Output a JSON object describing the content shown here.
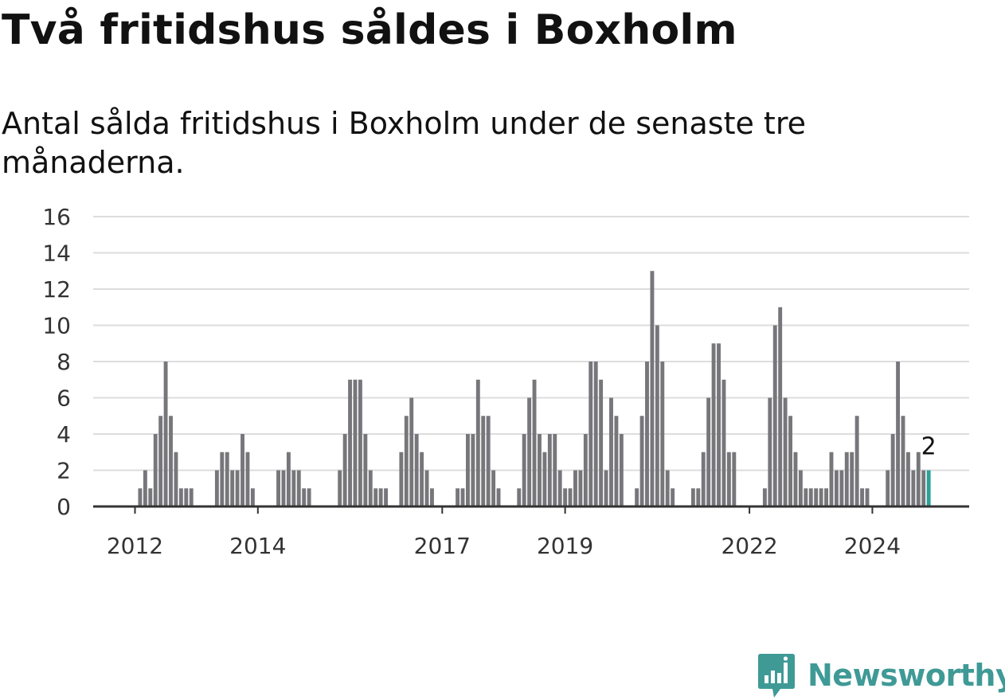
{
  "title": "Två fritidshus såldes i Boxholm",
  "subtitle": "Antal sålda fritidshus i Boxholm under de senaste tre månaderna.",
  "brand": {
    "name": "Newsworthy",
    "icon": "newsworthy-logo-icon",
    "color": "#3f9a96"
  },
  "colors": {
    "bar": "#77767b",
    "highlight": "#2aa198",
    "grid": "#dddddd",
    "axis": "#333333"
  },
  "chart_data": {
    "type": "bar",
    "ylim": [
      0,
      16
    ],
    "yticks": [
      "0",
      "2",
      "4",
      "6",
      "8",
      "10",
      "12",
      "14",
      "16"
    ],
    "xticks": [
      {
        "label": "2012",
        "index": 0
      },
      {
        "label": "2014",
        "index": 24
      },
      {
        "label": "2017",
        "index": 60
      },
      {
        "label": "2019",
        "index": 84
      },
      {
        "label": "2022",
        "index": 120
      },
      {
        "label": "2024",
        "index": 144
      }
    ],
    "grid": true,
    "highlight_label": "2",
    "values": [
      0,
      1,
      2,
      1,
      4,
      5,
      8,
      5,
      3,
      1,
      1,
      1,
      0,
      0,
      0,
      0,
      2,
      3,
      3,
      2,
      2,
      4,
      3,
      1,
      0,
      0,
      0,
      0,
      2,
      2,
      3,
      2,
      2,
      1,
      1,
      0,
      0,
      0,
      0,
      0,
      2,
      4,
      7,
      7,
      7,
      4,
      2,
      1,
      1,
      1,
      0,
      0,
      3,
      5,
      6,
      4,
      3,
      2,
      1,
      0,
      0,
      0,
      0,
      1,
      1,
      4,
      4,
      7,
      5,
      5,
      2,
      1,
      0,
      0,
      0,
      1,
      4,
      6,
      7,
      4,
      3,
      4,
      4,
      2,
      1,
      1,
      2,
      2,
      4,
      8,
      8,
      7,
      2,
      6,
      5,
      4,
      0,
      0,
      1,
      5,
      8,
      13,
      10,
      8,
      2,
      1,
      0,
      0,
      0,
      1,
      1,
      3,
      6,
      9,
      9,
      7,
      3,
      3,
      0,
      0,
      0,
      0,
      0,
      1,
      6,
      10,
      11,
      6,
      5,
      3,
      2,
      1,
      1,
      1,
      1,
      1,
      3,
      2,
      2,
      3,
      3,
      5,
      1,
      1,
      0,
      0,
      0,
      2,
      4,
      8,
      5,
      3,
      2,
      3,
      2,
      2
    ]
  }
}
